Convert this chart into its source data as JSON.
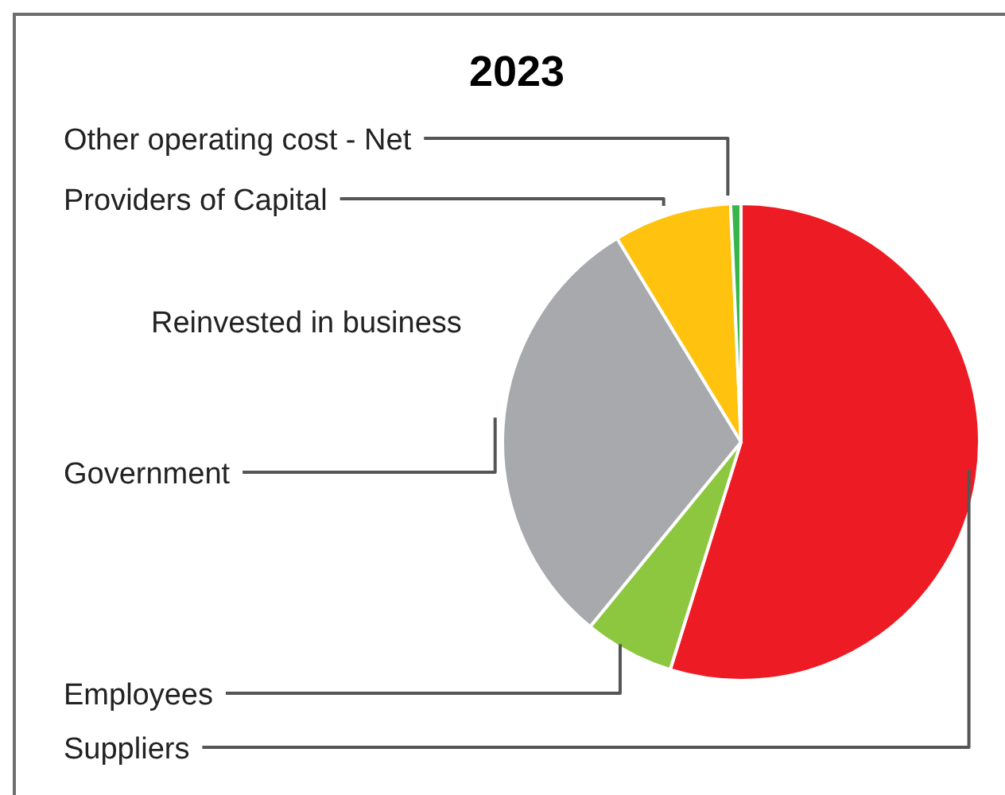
{
  "chart_data": {
    "type": "pie",
    "title": "2023",
    "categories": [
      "Suppliers",
      "Employees",
      "Government",
      "Reinvested in business",
      "Providers of Capital",
      "Other operating cost - Net"
    ],
    "values": [
      54.8,
      6.1,
      30.4,
      0,
      8.0,
      0.7
    ],
    "colors": [
      "#ed1c24",
      "#8dc63f",
      "#a7a9ac",
      "#6d6e71",
      "#ffc20e",
      "#39b54a"
    ]
  }
}
